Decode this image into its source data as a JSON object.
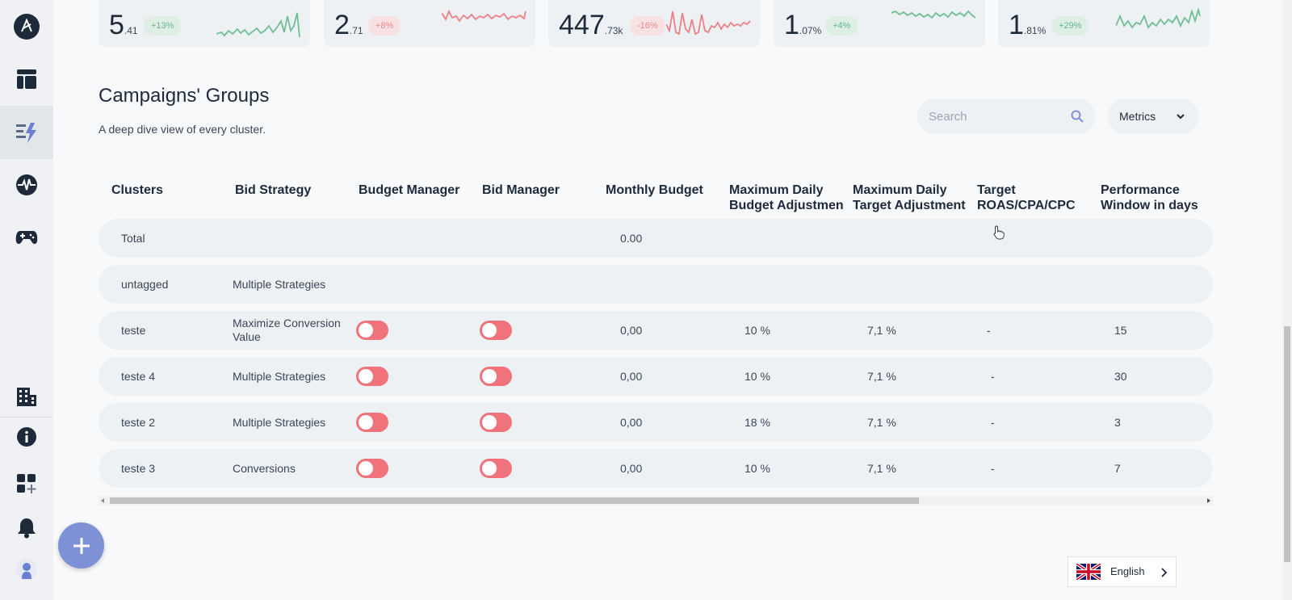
{
  "kpis": [
    {
      "value": "5",
      "decimal": ".41",
      "change": "+13%",
      "trend": "up",
      "color": "#6fbf95"
    },
    {
      "value": "2",
      "decimal": ".71",
      "change": "+8%",
      "trend": "down",
      "color": "#ec8088"
    },
    {
      "value": "447",
      "decimal": ".73k",
      "change": "-16%",
      "trend": "down",
      "color": "#ec8088"
    },
    {
      "value": "1",
      "decimal": ".07%",
      "change": "+4%",
      "trend": "up",
      "color": "#6fbf95"
    },
    {
      "value": "1",
      "decimal": ".81%",
      "change": "+29%",
      "trend": "up",
      "color": "#6fbf95"
    }
  ],
  "section": {
    "title": "Campaigns' Groups",
    "subtitle": "A deep dive view of every cluster."
  },
  "search": {
    "placeholder": "Search",
    "value": ""
  },
  "metrics_label": "Metrics",
  "table": {
    "columns": [
      {
        "line1": "Clusters",
        "line2": ""
      },
      {
        "line1": "Bid Strategy",
        "line2": ""
      },
      {
        "line1": "Budget Manager",
        "line2": ""
      },
      {
        "line1": "Bid Manager",
        "line2": ""
      },
      {
        "line1": "Monthly Budget",
        "line2": ""
      },
      {
        "line1": "Maximum Daily",
        "line2": "Budget Adjustmen"
      },
      {
        "line1": "Maximum Daily",
        "line2": "Target Adjustment"
      },
      {
        "line1": "Target",
        "line2": "ROAS/CPA/CPC"
      },
      {
        "line1": "Performance",
        "line2": "Window in days"
      }
    ],
    "total_row": {
      "cluster": "Total",
      "monthly_budget": "0.00"
    },
    "untagged_row": {
      "cluster": "untagged",
      "bid_strategy": "Multiple Strategies"
    },
    "rows": [
      {
        "cluster": "teste",
        "bid_strategy": "Maximize Conversion Value",
        "budget_manager": "off",
        "bid_manager": "off",
        "monthly_budget": "0,00",
        "max_daily_budget": "10 %",
        "max_daily_target": "7,1 %",
        "target": "-",
        "window": "15"
      },
      {
        "cluster": "teste 4",
        "bid_strategy": "Multiple Strategies",
        "budget_manager": "off",
        "bid_manager": "off",
        "monthly_budget": "0,00",
        "max_daily_budget": "10 %",
        "max_daily_target": "7,1 %",
        "target": "-",
        "window": "30"
      },
      {
        "cluster": "teste 2",
        "bid_strategy": "Multiple Strategies",
        "budget_manager": "off",
        "bid_manager": "off",
        "monthly_budget": "0,00",
        "max_daily_budget": "18 %",
        "max_daily_target": "7,1 %",
        "target": "-",
        "window": "3"
      },
      {
        "cluster": "teste 3",
        "bid_strategy": "Conversions",
        "budget_manager": "off",
        "bid_manager": "off",
        "monthly_budget": "0,00",
        "max_daily_budget": "10 %",
        "max_daily_target": "7,1 %",
        "target": "-",
        "window": "7"
      }
    ]
  },
  "sidebar": {
    "items": [
      "logo-icon",
      "dashboard-icon",
      "campaigns-icon",
      "activity-icon",
      "gamepad-icon",
      "building-icon",
      "info-icon",
      "add-widget-icon",
      "bell-icon",
      "user-avatar-icon"
    ]
  },
  "language": {
    "label": "English",
    "flag": "uk-flag-icon"
  },
  "colors": {
    "accent": "#7e91d6",
    "toggle_off": "#f0727a",
    "positive": "#6fbf95",
    "negative": "#ec8088"
  }
}
